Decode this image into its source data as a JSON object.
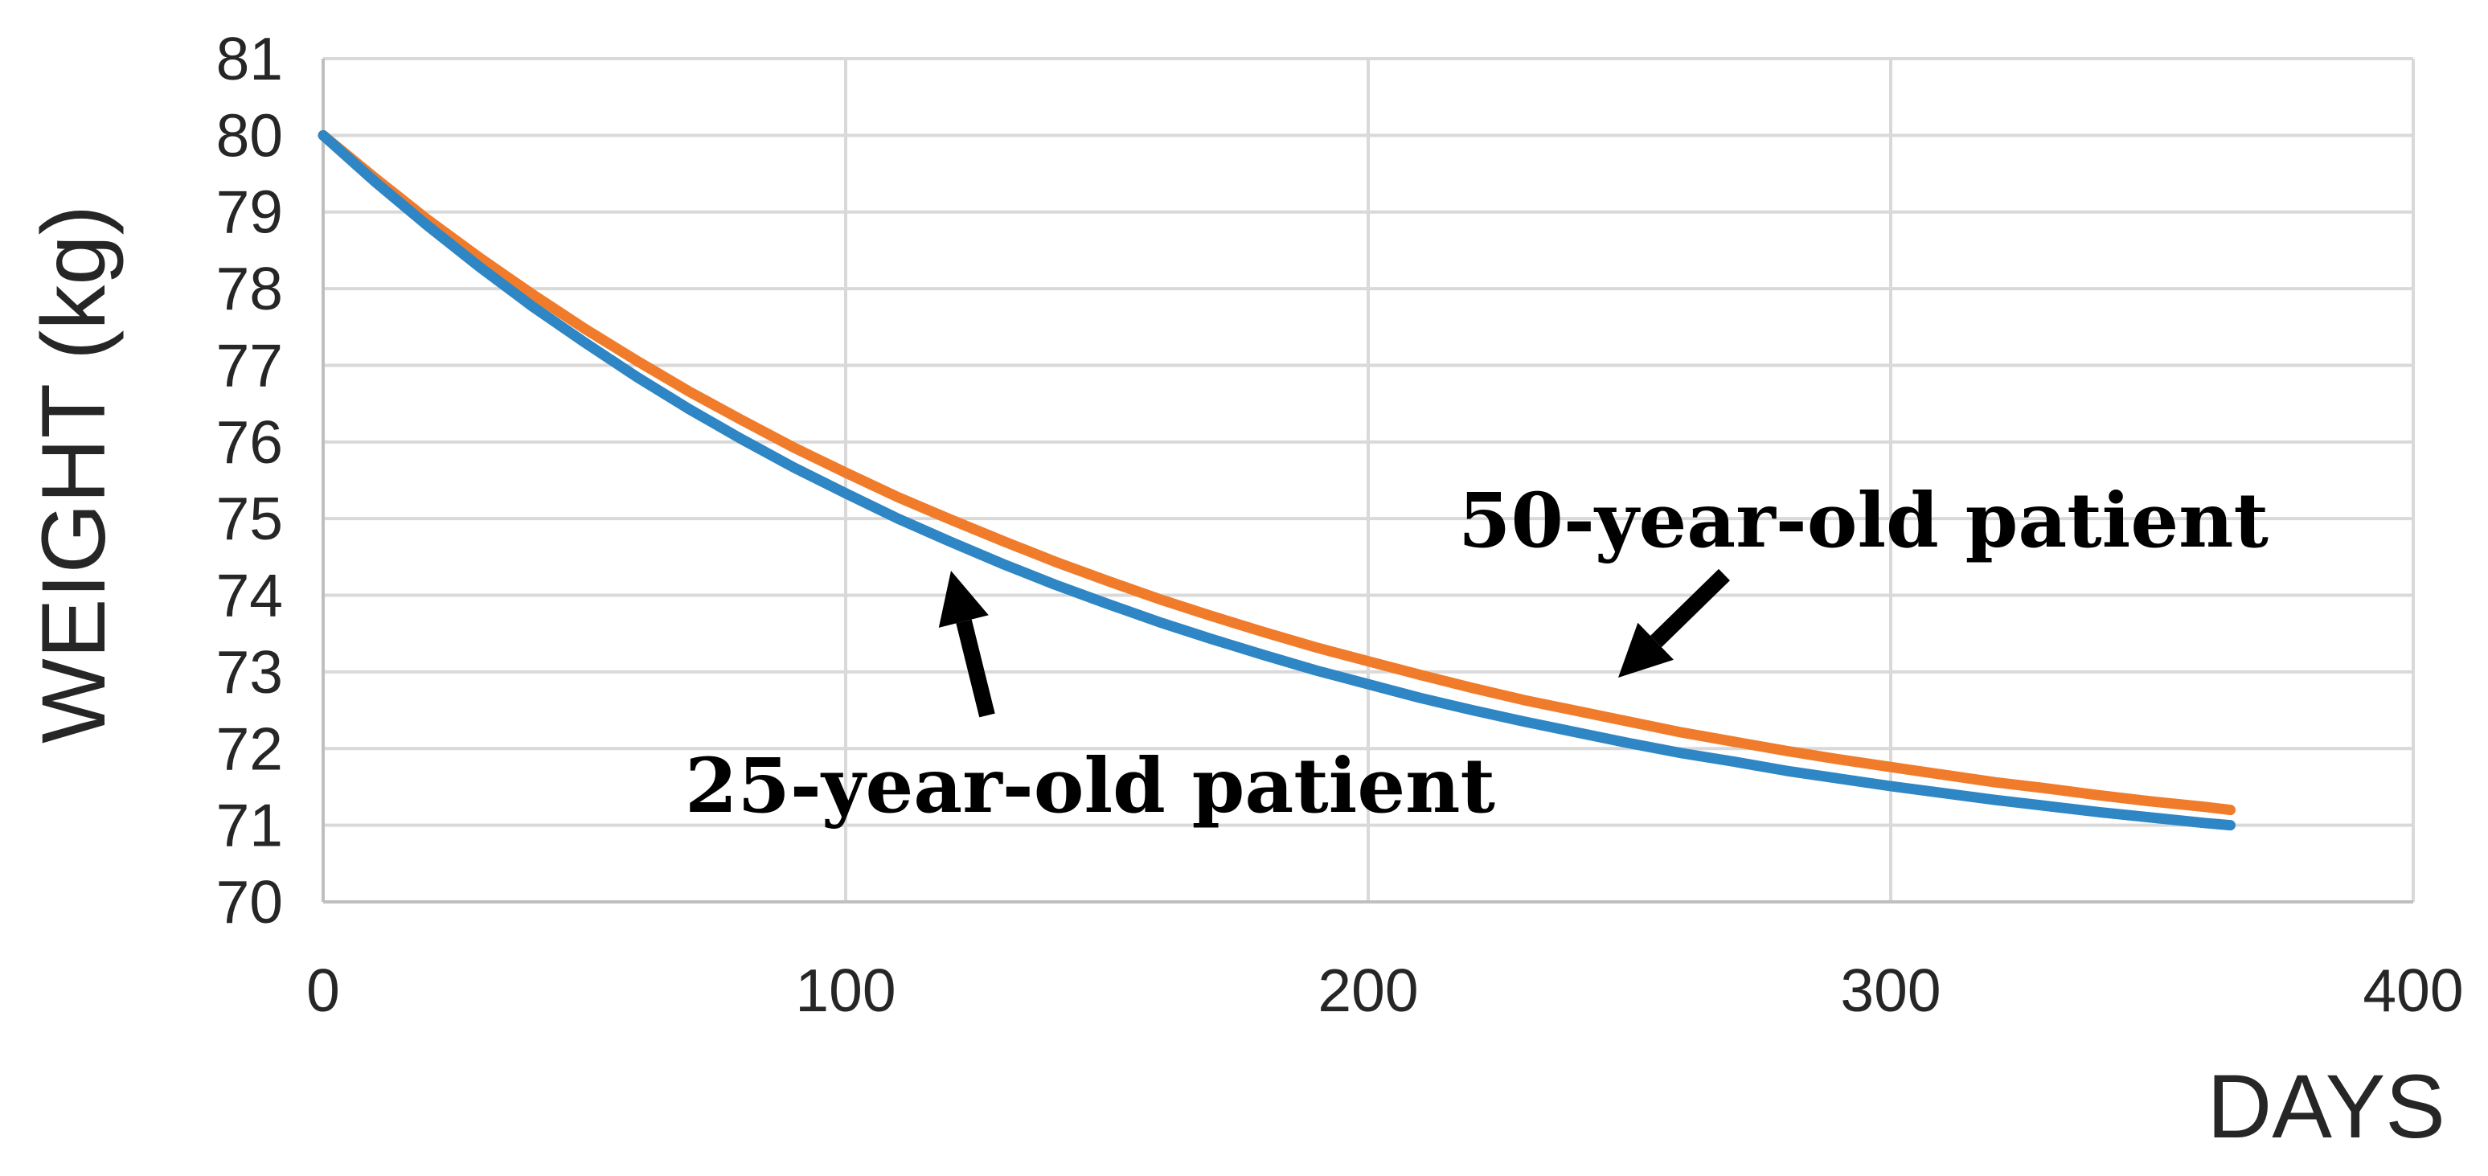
{
  "figure": {
    "background_color": "#ffffff",
    "text_color": "#262626"
  },
  "chart_data": {
    "type": "line",
    "title": "",
    "xlabel": "DAYS",
    "ylabel": "WEIGHT (kg)",
    "xlim": [
      0,
      400
    ],
    "ylim": [
      70,
      81
    ],
    "xticks": [
      "0",
      "100",
      "200",
      "300",
      "400"
    ],
    "xtick_values": [
      0,
      100,
      200,
      300,
      400
    ],
    "yticks": [
      "81",
      "80",
      "79",
      "78",
      "77",
      "76",
      "75",
      "74",
      "73",
      "72",
      "71",
      "70"
    ],
    "ytick_values": [
      81,
      80,
      79,
      78,
      77,
      76,
      75,
      74,
      73,
      72,
      71,
      70
    ],
    "grid": true,
    "gridline_color": "#d9d9d9",
    "axis_line_color": "#bfbfbf",
    "legend_position": "none",
    "series": [
      {
        "name": "50-year-old patient",
        "color": "#f07c2b",
        "x": [
          0,
          10,
          20,
          30,
          40,
          50,
          60,
          70,
          80,
          90,
          100,
          110,
          120,
          130,
          140,
          150,
          160,
          170,
          180,
          190,
          200,
          210,
          220,
          230,
          240,
          250,
          260,
          270,
          280,
          290,
          300,
          310,
          320,
          330,
          340,
          350,
          360,
          365
        ],
        "y": [
          80.0,
          79.44,
          78.9,
          78.4,
          77.93,
          77.48,
          77.06,
          76.66,
          76.29,
          75.93,
          75.6,
          75.28,
          74.99,
          74.71,
          74.44,
          74.19,
          73.95,
          73.73,
          73.52,
          73.32,
          73.14,
          72.96,
          72.79,
          72.63,
          72.49,
          72.35,
          72.21,
          72.09,
          71.97,
          71.86,
          71.76,
          71.66,
          71.56,
          71.48,
          71.39,
          71.31,
          71.24,
          71.2
        ]
      },
      {
        "name": "25-year-old patient",
        "color": "#2e86c4",
        "x": [
          0,
          10,
          20,
          30,
          40,
          50,
          60,
          70,
          80,
          90,
          100,
          110,
          120,
          130,
          140,
          150,
          160,
          170,
          180,
          190,
          200,
          210,
          220,
          230,
          240,
          250,
          260,
          270,
          280,
          290,
          300,
          310,
          320,
          330,
          340,
          350,
          360,
          365
        ],
        "y": [
          80.0,
          79.39,
          78.82,
          78.28,
          77.77,
          77.3,
          76.85,
          76.43,
          76.04,
          75.67,
          75.33,
          75.0,
          74.7,
          74.41,
          74.14,
          73.89,
          73.65,
          73.43,
          73.22,
          73.02,
          72.84,
          72.66,
          72.5,
          72.35,
          72.21,
          72.07,
          71.94,
          71.83,
          71.71,
          71.61,
          71.51,
          71.42,
          71.33,
          71.25,
          71.17,
          71.1,
          71.03,
          71.0
        ]
      }
    ],
    "annotations": [
      {
        "text": "50-year-old patient",
        "points_to_series": "50-year-old patient",
        "arrow": "down-left toward orange line near day 250"
      },
      {
        "text": "25-year-old patient",
        "points_to_series": "25-year-old patient",
        "arrow": "up toward blue line near day 120"
      }
    ]
  }
}
